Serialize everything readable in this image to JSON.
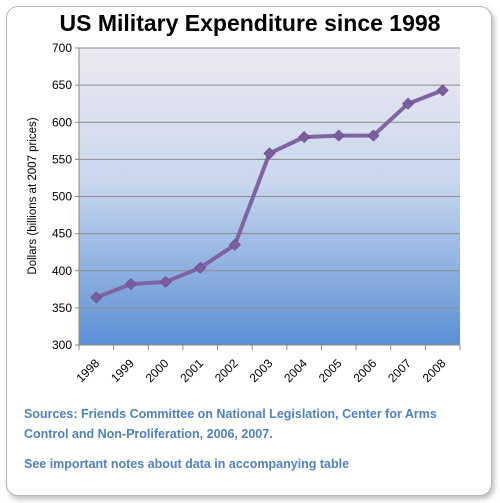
{
  "title": "US Military Expenditure since 1998",
  "sources": "Sources: Friends Committee on National Legislation, Center for Arms Control and Non-Proliferation, 2006, 2007.",
  "note": "See important notes about data in accompanying table",
  "colors": {
    "line": "#8064a2",
    "marker": "#7a5e9e",
    "plot_top": "#ece8f1",
    "plot_bottom": "#5b8fd6",
    "text_accent": "#4f81bd"
  },
  "chart_data": {
    "type": "line",
    "title": "US Military Expenditure since 1998",
    "xlabel": "",
    "ylabel": "Dollars (billions at 2007 prices)",
    "categories": [
      "1998",
      "1999",
      "2000",
      "2001",
      "2002",
      "2003",
      "2004",
      "2005",
      "2006",
      "2007",
      "2008"
    ],
    "series": [
      {
        "values": [
          364,
          382,
          385,
          404,
          435,
          558,
          580,
          582,
          582,
          625,
          643
        ]
      }
    ],
    "ylim": [
      300,
      700
    ],
    "yticks": [
      300,
      350,
      400,
      450,
      500,
      550,
      600,
      650,
      700
    ],
    "grid": true,
    "legend": "none"
  }
}
